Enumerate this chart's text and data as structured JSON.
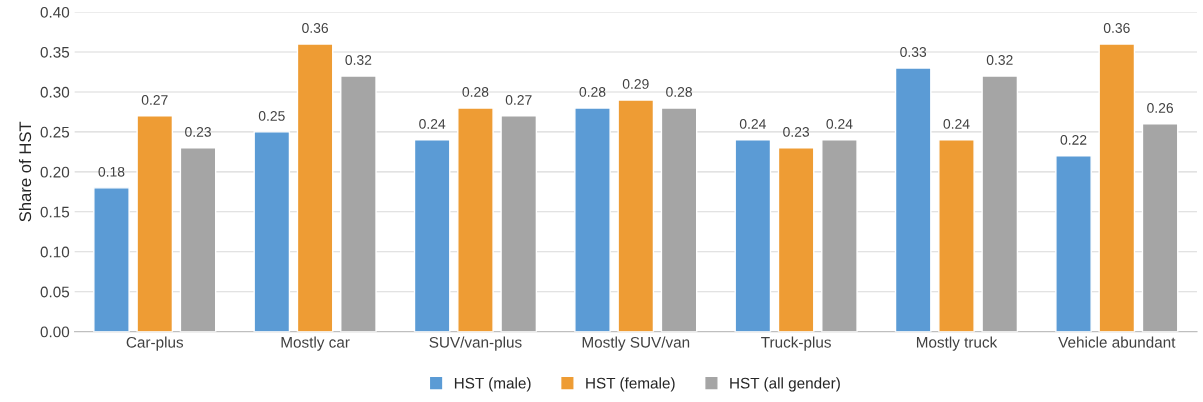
{
  "chart_data": {
    "type": "bar",
    "ylabel": "Share of HST",
    "categories": [
      "Car-plus",
      "Mostly car",
      "SUV/van-plus",
      "Mostly SUV/van",
      "Truck-plus",
      "Mostly truck",
      "Vehicle abundant"
    ],
    "series": [
      {
        "name": "HST (male)",
        "color": "#5b9bd5",
        "values": [
          0.18,
          0.25,
          0.24,
          0.28,
          0.24,
          0.33,
          0.22
        ]
      },
      {
        "name": "HST (female)",
        "color": "#ee9c34",
        "values": [
          0.27,
          0.36,
          0.28,
          0.29,
          0.23,
          0.24,
          0.36
        ]
      },
      {
        "name": "HST (all gender)",
        "color": "#a5a5a5",
        "values": [
          0.23,
          0.32,
          0.27,
          0.28,
          0.24,
          0.32,
          0.26
        ]
      }
    ],
    "ylim": [
      0,
      0.4
    ],
    "yticks": [
      {
        "value": 0,
        "label": "0.00"
      },
      {
        "value": 0.05,
        "label": "0.05"
      },
      {
        "value": 0.1,
        "label": "0.10"
      },
      {
        "value": 0.15,
        "label": "0.15"
      },
      {
        "value": 0.2,
        "label": "0.20"
      },
      {
        "value": 0.25,
        "label": "0.25"
      },
      {
        "value": 0.3,
        "label": "0.30"
      },
      {
        "value": 0.35,
        "label": "0.35"
      },
      {
        "value": 0.4,
        "label": "0.40"
      }
    ],
    "grid": "y",
    "legend": "bottom",
    "data_labels": true
  }
}
